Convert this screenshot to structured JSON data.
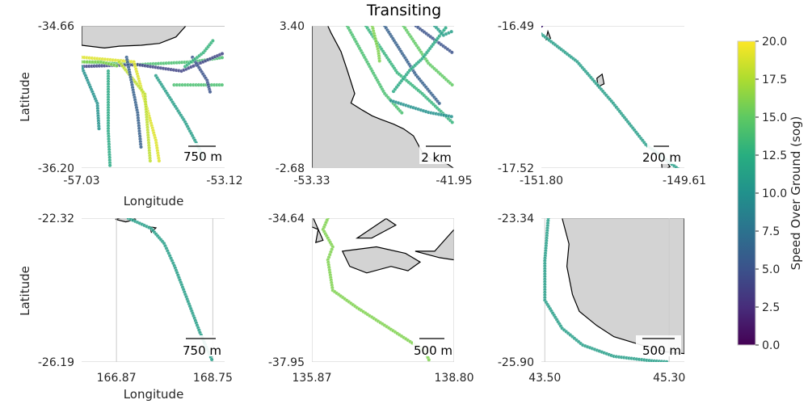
{
  "figure": {
    "title": "Transiting"
  },
  "colorbar": {
    "label": "Speed Over Ground (sog)",
    "colormap": "viridis",
    "min": 0.0,
    "max": 20.0,
    "ticks": [
      "0.0",
      "2.5",
      "5.0",
      "7.5",
      "10.0",
      "12.5",
      "15.0",
      "17.5",
      "20.0"
    ]
  },
  "colors": {
    "land": "#d3d3d3",
    "coast": "#000000",
    "grid": "#cccccc",
    "background": "#ffffff"
  },
  "chart_data": [
    {
      "type": "scatter",
      "xlabel": "Longitude",
      "ylabel": "Latitude",
      "xlim": [
        -57.03,
        -53.12
      ],
      "ylim": [
        -36.2,
        -34.66
      ],
      "xticks": [
        "-57.03",
        "-53.12"
      ],
      "yticks": [
        "-36.20",
        "-34.66"
      ],
      "scalebar": "750 m",
      "tracks": [
        {
          "sog": 14,
          "points": [
            [
              -57.03,
              -35.05
            ],
            [
              -55.5,
              -35.08
            ],
            [
              -54.0,
              -35.05
            ],
            [
              -53.12,
              -35.0
            ]
          ]
        },
        {
          "sog": 4,
          "points": [
            [
              -57.03,
              -35.1
            ],
            [
              -55.5,
              -35.08
            ],
            [
              -54.3,
              -35.15
            ],
            [
              -53.12,
              -34.95
            ]
          ]
        },
        {
          "sog": 19,
          "points": [
            [
              -57.03,
              -35.0
            ],
            [
              -55.6,
              -35.05
            ],
            [
              -55.0,
              -35.9
            ],
            [
              -54.9,
              -36.15
            ]
          ]
        },
        {
          "sog": 18,
          "points": [
            [
              -56.0,
              -35.05
            ],
            [
              -55.3,
              -35.4
            ],
            [
              -55.15,
              -36.15
            ]
          ]
        },
        {
          "sog": 12,
          "points": [
            [
              -56.3,
              -35.15
            ],
            [
              -56.3,
              -35.8
            ],
            [
              -56.25,
              -36.2
            ]
          ]
        },
        {
          "sog": 6,
          "points": [
            [
              -55.8,
              -35.0
            ],
            [
              -55.5,
              -35.6
            ],
            [
              -55.4,
              -36.0
            ]
          ]
        },
        {
          "sog": 11,
          "points": [
            [
              -55.0,
              -35.2
            ],
            [
              -54.2,
              -35.7
            ],
            [
              -53.8,
              -36.0
            ],
            [
              -53.7,
              -36.1
            ]
          ]
        },
        {
          "sog": 14,
          "points": [
            [
              -54.5,
              -35.3
            ],
            [
              -53.9,
              -35.3
            ],
            [
              -53.12,
              -35.3
            ]
          ]
        },
        {
          "sog": 5,
          "points": [
            [
              -54.0,
              -35.0
            ],
            [
              -53.6,
              -35.25
            ],
            [
              -53.5,
              -35.4
            ]
          ]
        },
        {
          "sog": 16,
          "points": [
            [
              -57.03,
              -35.05
            ],
            [
              -56.5,
              -35.05
            ],
            [
              -56.0,
              -35.1
            ]
          ]
        },
        {
          "sog": 13,
          "points": [
            [
              -54.2,
              -35.1
            ],
            [
              -53.7,
              -34.95
            ],
            [
              -53.4,
              -34.8
            ]
          ]
        },
        {
          "sog": 10,
          "points": [
            [
              -57.03,
              -35.1
            ],
            [
              -56.6,
              -35.5
            ],
            [
              -56.55,
              -35.8
            ]
          ]
        }
      ],
      "land": [
        [
          [
            -57.03,
            -34.66
          ],
          [
            -57.03,
            -34.87
          ],
          [
            -56.4,
            -34.9
          ],
          [
            -56.0,
            -34.88
          ],
          [
            -55.4,
            -34.87
          ],
          [
            -54.9,
            -34.85
          ],
          [
            -54.45,
            -34.78
          ],
          [
            -54.0,
            -34.58
          ],
          [
            -53.7,
            -34.4
          ],
          [
            -53.4,
            -34.2
          ],
          [
            -53.2,
            -34.05
          ],
          [
            -53.12,
            -33.95
          ],
          [
            -53.12,
            -34.66
          ],
          [
            -57.03,
            -34.66
          ]
        ],
        [
          [
            -57.03,
            -36.6
          ],
          [
            -57.03,
            -36.45
          ],
          [
            -56.85,
            -36.35
          ],
          [
            -56.7,
            -36.6
          ]
        ]
      ],
      "grid": {
        "x": [],
        "y": [
          -36.2,
          -34.66
        ]
      }
    },
    {
      "type": "scatter",
      "xlim": [
        -53.33,
        -41.95
      ],
      "ylim": [
        -2.68,
        3.4
      ],
      "xticks": [
        "-53.33",
        "-41.95"
      ],
      "yticks": [
        "-2.68",
        "3.40"
      ],
      "scalebar": "2 km",
      "tracks": [
        {
          "sog": 14,
          "points": [
            [
              -50.5,
              3.4
            ],
            [
              -47.5,
              0.5
            ],
            [
              -46.0,
              -0.4
            ]
          ]
        },
        {
          "sog": 13,
          "points": [
            [
              -49.0,
              3.4
            ],
            [
              -46.5,
              1.4
            ],
            [
              -44.5,
              0.5
            ],
            [
              -41.95,
              -0.8
            ]
          ]
        },
        {
          "sog": 6,
          "points": [
            [
              -47.5,
              3.4
            ],
            [
              -45.0,
              1.3
            ],
            [
              -43.0,
              0.0
            ]
          ]
        },
        {
          "sog": 15,
          "points": [
            [
              -46.0,
              3.4
            ],
            [
              -44.0,
              1.8
            ],
            [
              -41.95,
              0.8
            ]
          ]
        },
        {
          "sog": 5,
          "points": [
            [
              -45.0,
              3.4
            ],
            [
              -43.5,
              2.8
            ],
            [
              -41.95,
              2.2
            ]
          ]
        },
        {
          "sog": 16,
          "points": [
            [
              -48.5,
              3.4
            ],
            [
              -48.0,
              2.3
            ],
            [
              -47.9,
              1.8
            ]
          ]
        },
        {
          "sog": 12,
          "points": [
            [
              -46.8,
              0.6
            ],
            [
              -45.5,
              1.5
            ],
            [
              -44.5,
              2.0
            ],
            [
              -42.5,
              3.4
            ]
          ]
        },
        {
          "sog": 10,
          "points": [
            [
              -47.0,
              0.2
            ],
            [
              -44.0,
              -0.3
            ],
            [
              -41.95,
              -0.5
            ]
          ]
        },
        {
          "sog": 11,
          "points": [
            [
              -43.5,
              3.4
            ],
            [
              -42.8,
              3.0
            ],
            [
              -41.95,
              3.2
            ]
          ]
        }
      ],
      "land": [
        [
          [
            -53.33,
            -2.68
          ],
          [
            -53.33,
            3.8
          ],
          [
            -52.4,
            3.8
          ],
          [
            -51.8,
            3.1
          ],
          [
            -51.0,
            2.3
          ],
          [
            -50.5,
            1.5
          ],
          [
            -49.9,
            0.5
          ],
          [
            -50.2,
            0.1
          ],
          [
            -49.3,
            -0.2
          ],
          [
            -48.5,
            -0.45
          ],
          [
            -47.8,
            -0.6
          ],
          [
            -46.8,
            -0.8
          ],
          [
            -46.0,
            -1.0
          ],
          [
            -45.2,
            -1.3
          ],
          [
            -44.5,
            -2.0
          ],
          [
            -43.8,
            -2.3
          ],
          [
            -42.5,
            -2.5
          ],
          [
            -41.95,
            -2.7
          ],
          [
            -41.95,
            -3.5
          ],
          [
            -53.33,
            -3.5
          ]
        ]
      ],
      "grid": {
        "x": [],
        "y": [
          -2.68,
          3.4
        ]
      }
    },
    {
      "type": "scatter",
      "xlim": [
        -151.8,
        -149.61
      ],
      "ylim": [
        -17.52,
        -16.49
      ],
      "xticks": [
        "-151.80",
        "-149.61"
      ],
      "yticks": [
        "-17.52",
        "-16.49"
      ],
      "scalebar": "200 m",
      "tracks": [
        {
          "sog": 11,
          "points": [
            [
              -151.8,
              -16.55
            ],
            [
              -151.25,
              -16.75
            ],
            [
              -150.7,
              -17.05
            ],
            [
              -150.2,
              -17.35
            ],
            [
              -149.61,
              -17.56
            ]
          ]
        },
        {
          "sog": 2,
          "points": [
            [
              -151.8,
              -16.49
            ]
          ]
        }
      ],
      "land": [
        [
          [
            -150.95,
            -16.87
          ],
          [
            -150.87,
            -16.84
          ],
          [
            -150.84,
            -16.91
          ],
          [
            -150.93,
            -16.93
          ]
        ],
        [
          [
            -149.96,
            -17.47
          ],
          [
            -149.9,
            -17.46
          ],
          [
            -149.83,
            -17.51
          ],
          [
            -149.95,
            -17.54
          ]
        ],
        [
          [
            -151.7,
            -16.53
          ],
          [
            -151.73,
            -16.59
          ],
          [
            -151.66,
            -16.58
          ]
        ]
      ],
      "grid": {
        "x": [],
        "y": [
          -17.52,
          -16.49
        ]
      }
    },
    {
      "type": "scatter",
      "xlabel": "Longitude",
      "ylabel": "Latitude",
      "xlim": [
        166.19,
        168.98
      ],
      "ylim": [
        -26.19,
        -22.32
      ],
      "xticks": [
        "166.87",
        "168.75"
      ],
      "yticks": [
        "-26.19",
        "-22.32"
      ],
      "scalebar": "750 m",
      "tracks": [
        {
          "sog": 11,
          "points": [
            [
              167.1,
              -22.32
            ],
            [
              167.55,
              -22.6
            ],
            [
              167.8,
              -23.0
            ],
            [
              168.0,
              -23.6
            ],
            [
              168.25,
              -24.5
            ],
            [
              168.5,
              -25.4
            ],
            [
              168.75,
              -26.19
            ]
          ]
        }
      ],
      "land": [
        [
          [
            166.85,
            -22.35
          ],
          [
            167.05,
            -22.28
          ],
          [
            167.25,
            -22.35
          ],
          [
            167.05,
            -22.42
          ]
        ],
        [
          [
            167.52,
            -22.55
          ],
          [
            167.64,
            -22.58
          ],
          [
            167.55,
            -22.7
          ]
        ]
      ],
      "grid": {
        "x": [
          166.87,
          168.75
        ],
        "y": [
          -26.19,
          -22.32
        ]
      }
    },
    {
      "type": "scatter",
      "xlim": [
        135.87,
        138.8
      ],
      "ylim": [
        -37.95,
        -34.64
      ],
      "xticks": [
        "135.87",
        "138.80"
      ],
      "yticks": [
        "-37.95",
        "-34.64"
      ],
      "scalebar": "500 m",
      "tracks": [
        {
          "sog": 16,
          "points": [
            [
              136.2,
              -34.64
            ],
            [
              136.1,
              -34.9
            ],
            [
              136.3,
              -35.3
            ],
            [
              136.2,
              -35.6
            ],
            [
              136.3,
              -36.3
            ],
            [
              136.8,
              -36.7
            ],
            [
              137.5,
              -37.2
            ],
            [
              138.2,
              -37.7
            ],
            [
              138.3,
              -37.95
            ]
          ]
        }
      ],
      "land": [
        [
          [
            135.87,
            -34.64
          ],
          [
            135.87,
            -34.84
          ],
          [
            136.0,
            -34.9
          ],
          [
            135.95,
            -35.2
          ],
          [
            136.1,
            -35.15
          ],
          [
            135.9,
            -34.64
          ]
        ],
        [
          [
            136.5,
            -35.4
          ],
          [
            137.2,
            -35.3
          ],
          [
            137.8,
            -35.45
          ],
          [
            138.1,
            -35.65
          ],
          [
            137.85,
            -35.85
          ],
          [
            137.5,
            -35.75
          ],
          [
            137.0,
            -35.9
          ],
          [
            136.65,
            -35.75
          ]
        ],
        [
          [
            136.8,
            -35.1
          ],
          [
            137.4,
            -34.65
          ],
          [
            137.6,
            -34.8
          ],
          [
            137.1,
            -35.1
          ]
        ],
        [
          [
            138.0,
            -35.4
          ],
          [
            138.4,
            -35.4
          ],
          [
            138.8,
            -34.9
          ],
          [
            138.8,
            -35.6
          ],
          [
            138.5,
            -35.55
          ]
        ]
      ],
      "grid": {
        "x": [
          135.87,
          138.8
        ],
        "y": [
          -37.95,
          -34.64
        ]
      }
    },
    {
      "type": "scatter",
      "xlim": [
        43.45,
        45.52
      ],
      "ylim": [
        -25.9,
        -23.34
      ],
      "xticks": [
        "43.50",
        "45.30"
      ],
      "yticks": [
        "-25.90",
        "-23.34"
      ],
      "scalebar": "500 m",
      "tracks": [
        {
          "sog": 11,
          "points": [
            [
              43.55,
              -23.34
            ],
            [
              43.5,
              -24.1
            ],
            [
              43.5,
              -24.8
            ],
            [
              43.75,
              -25.3
            ],
            [
              44.05,
              -25.6
            ],
            [
              44.5,
              -25.8
            ],
            [
              45.05,
              -25.88
            ],
            [
              45.3,
              -25.9
            ]
          ]
        }
      ],
      "land": [
        [
          [
            43.75,
            -23.34
          ],
          [
            45.52,
            -23.34
          ],
          [
            45.52,
            -25.75
          ],
          [
            45.25,
            -25.72
          ],
          [
            44.9,
            -25.6
          ],
          [
            44.5,
            -25.45
          ],
          [
            44.25,
            -25.25
          ],
          [
            44.0,
            -25.0
          ],
          [
            43.9,
            -24.7
          ],
          [
            43.82,
            -24.2
          ],
          [
            43.85,
            -23.8
          ]
        ]
      ],
      "grid": {
        "x": [
          43.5,
          45.3
        ],
        "y": [
          -25.9,
          -23.34
        ]
      }
    }
  ]
}
